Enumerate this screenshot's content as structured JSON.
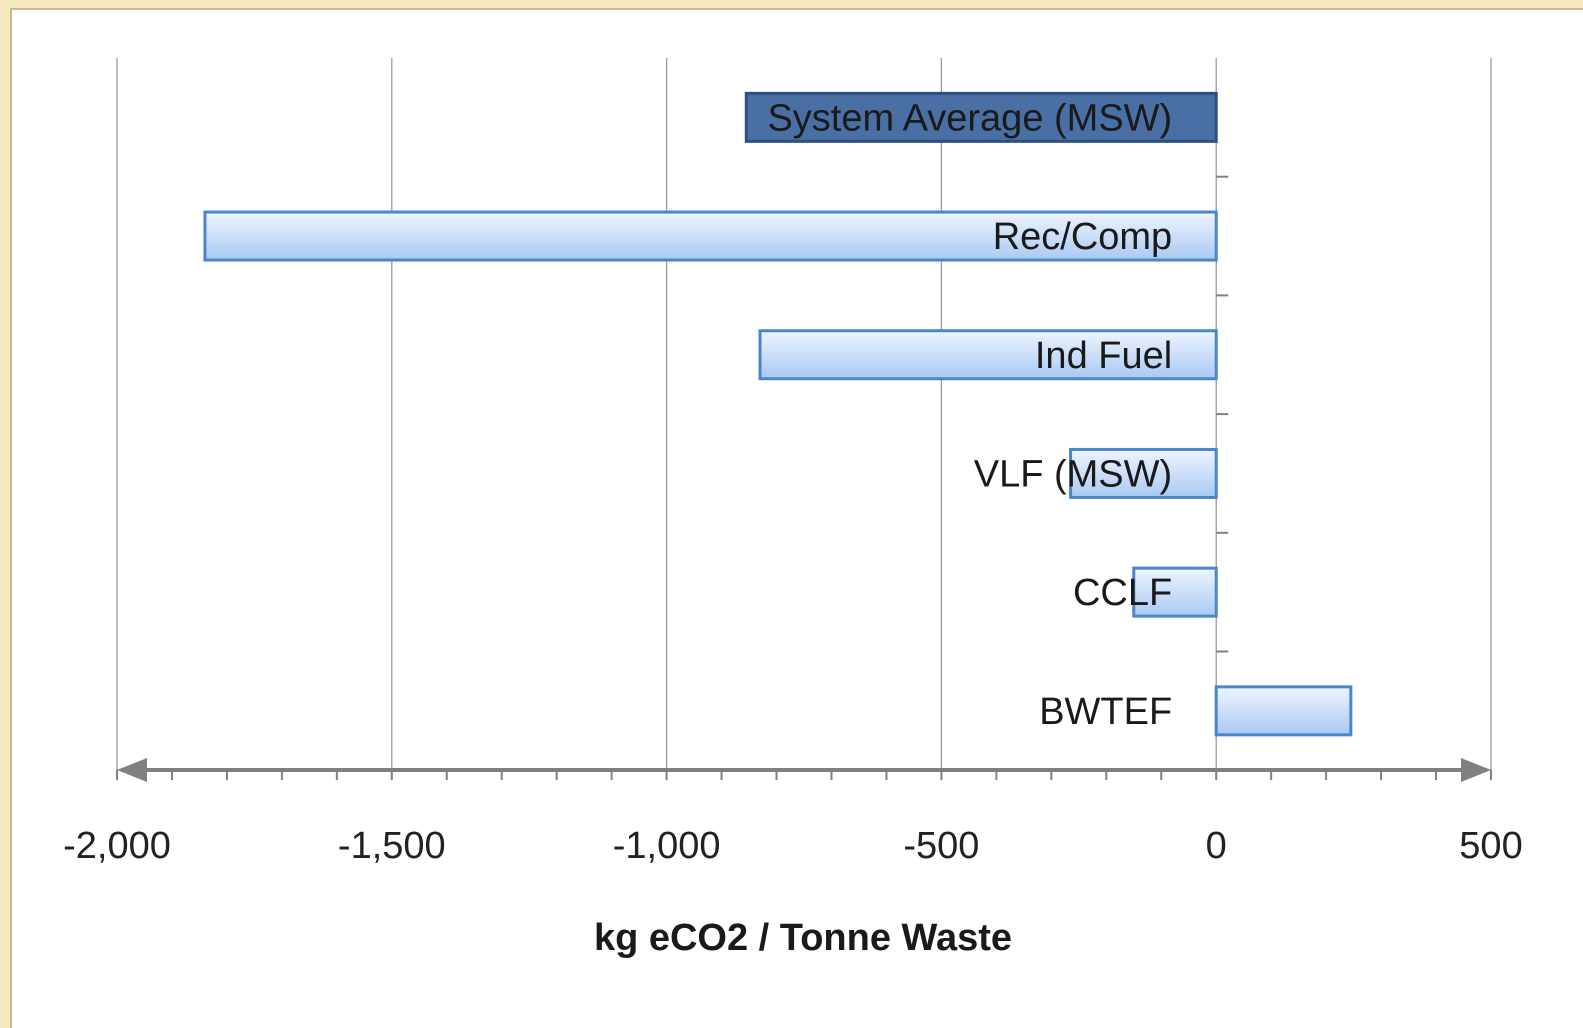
{
  "chart_data": {
    "type": "bar",
    "orientation": "horizontal",
    "categories": [
      "System Average (MSW)",
      "Rec/Comp",
      "Ind Fuel",
      "VLF (MSW)",
      "CCLF",
      "BWTEF"
    ],
    "values": [
      -855,
      -1840,
      -830,
      -265,
      -150,
      245
    ],
    "highlight": [
      true,
      false,
      false,
      false,
      false,
      false
    ],
    "xlabel": "kg eCO2 / Tonne Waste",
    "xlim": [
      -2000,
      500
    ],
    "xticks": [
      -2000,
      -1500,
      -1000,
      -500,
      0,
      500
    ],
    "xtick_labels": [
      "-2,000",
      "-1,500",
      "-1,000",
      "-500",
      "0",
      "500"
    ],
    "grid": true,
    "colors": {
      "highlight_fill": "#4a6fa5",
      "highlight_stroke": "#2c4f85",
      "bar_fill_top": "#eef5ff",
      "bar_fill_bottom": "#a9c9f2",
      "bar_stroke": "#4a86c8"
    }
  }
}
